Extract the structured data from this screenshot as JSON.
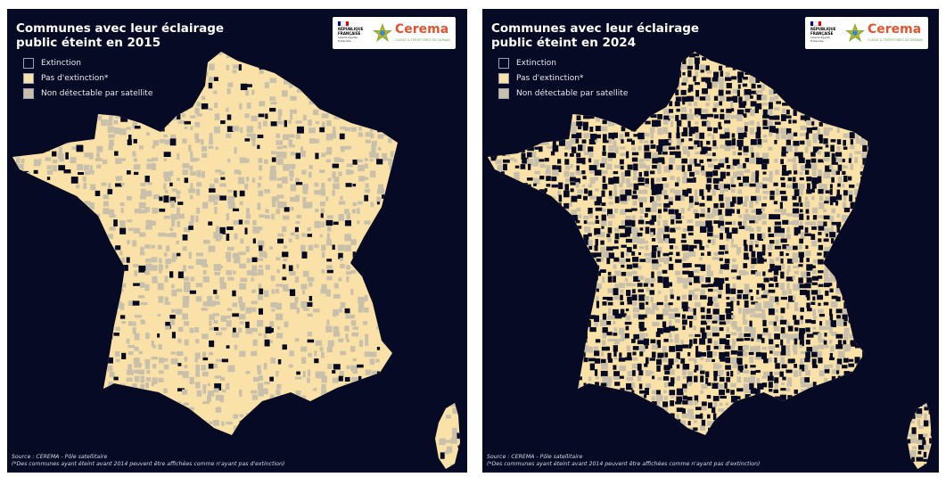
{
  "colors": {
    "background": "#060a24",
    "extinction": "#060a24",
    "pas_extinction": "#f9e1a7",
    "non_detectable": "#c8c0ab"
  },
  "legend": {
    "extinction": "Extinction",
    "pas_extinction": "Pas d'extinction*",
    "non_detectable": "Non détectable par satellite"
  },
  "logo": {
    "rf_text": "RÉPUBLIQUE FRANÇAISE",
    "rf_motto": "Liberté Égalité Fraternité",
    "cerema_name": "Cerema",
    "cerema_tagline": "CLIMAT & TERRITOIRES DE DEMAIN"
  },
  "source": {
    "line1": "Source : CEREMA - Pôle satellitaire",
    "line2": "(*Des communes ayant éteint avant 2014 peuvent être affichées comme n'ayant pas d'extinction)"
  },
  "maps": [
    {
      "title_line1": "Communes avec leur éclairage",
      "title_line2": "public éteint en 2015",
      "year": "2015",
      "extinction_level": 0.08,
      "non_detectable_level": 0.35
    },
    {
      "title_line1": "Communes avec leur éclairage",
      "title_line2": "public éteint en 2024",
      "year": "2024",
      "extinction_level": 0.5,
      "non_detectable_level": 0.35
    }
  ]
}
